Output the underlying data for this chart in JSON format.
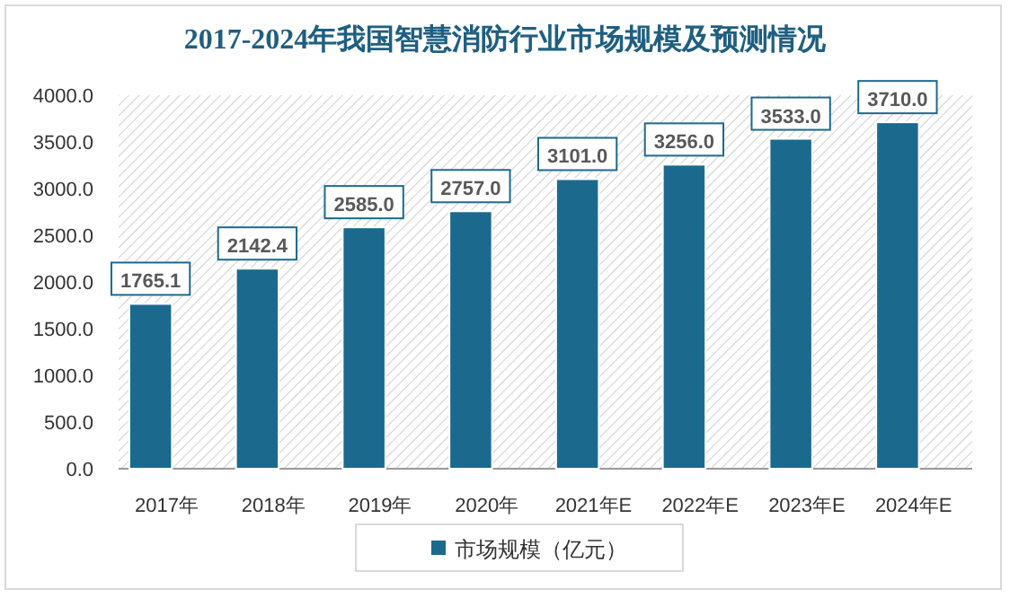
{
  "chart_data": {
    "type": "bar",
    "title": "2017-2024年我国智慧消防行业市场规模及预测情况",
    "categories": [
      "2017年",
      "2018年",
      "2019年",
      "2020年",
      "2021年E",
      "2022年E",
      "2023年E",
      "2024年E"
    ],
    "series": [
      {
        "name": "市场规模（亿元）",
        "color": "#1b6a8e",
        "values": [
          1765.1,
          2142.4,
          2585,
          2757,
          3101,
          3256,
          3533,
          3710
        ],
        "value_labels": [
          "1765.1",
          "2142.4",
          "2585.0",
          "2757.0",
          "3101.0",
          "3256.0",
          "3533.0",
          "3710.0"
        ]
      }
    ],
    "ylim": [
      0,
      4000
    ],
    "yticks": [
      {
        "value": 0,
        "label": "0.0"
      },
      {
        "value": 500,
        "label": "500.0"
      },
      {
        "value": 1000,
        "label": "1000.0"
      },
      {
        "value": 1500,
        "label": "1500.0"
      },
      {
        "value": 2000,
        "label": "2000.0"
      },
      {
        "value": 2500,
        "label": "2500.0"
      },
      {
        "value": 3000,
        "label": "3000.0"
      },
      {
        "value": 3500,
        "label": "3500.0"
      },
      {
        "value": 4000,
        "label": "4000.0"
      }
    ],
    "legend": "bottom"
  }
}
